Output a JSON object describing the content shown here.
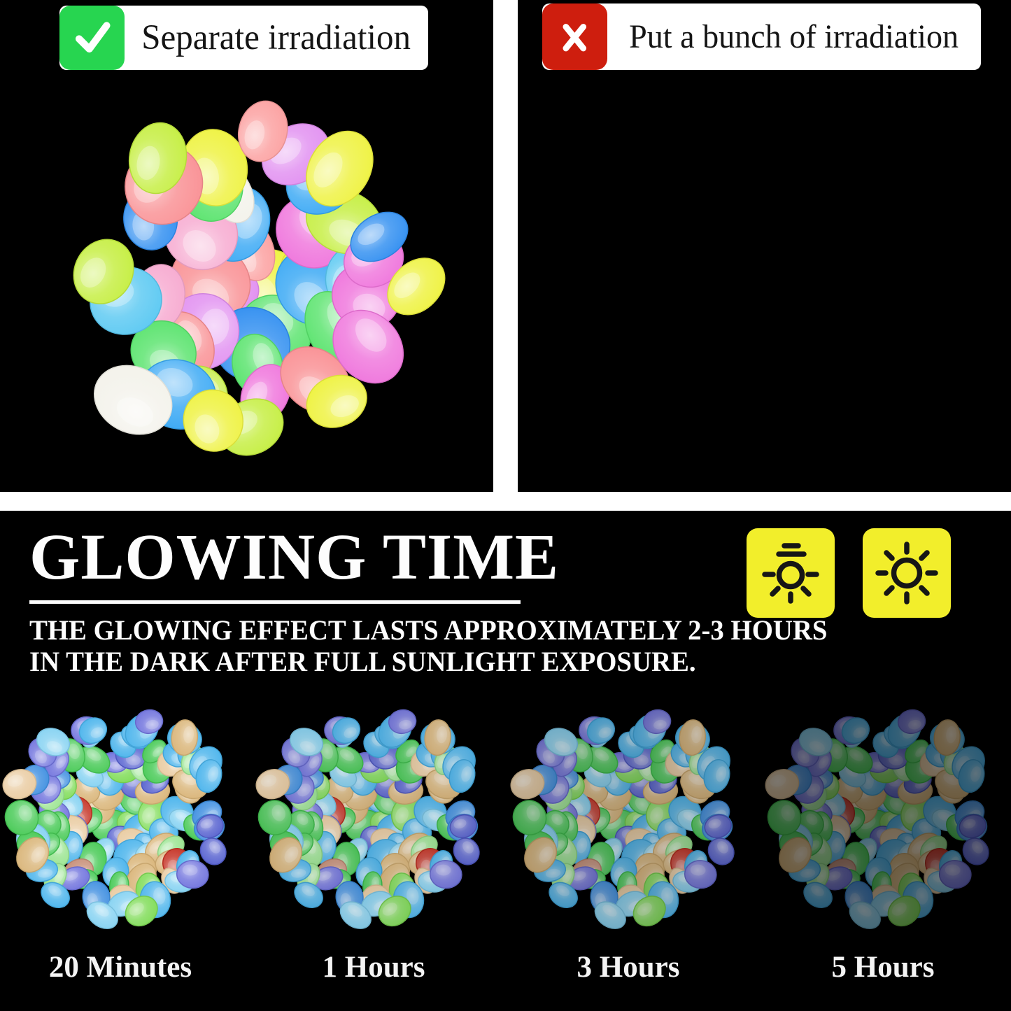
{
  "comparison": {
    "good": {
      "label": "Separate irradiation",
      "mark": "check",
      "mark_color": "#27d550"
    },
    "bad": {
      "label": "Put a bunch of irradiation",
      "mark": "cross",
      "mark_color": "#ce1e0e"
    }
  },
  "glowing": {
    "title": "GLOWING TIME",
    "subtitle_line1": "THE GLOWING EFFECT LASTS APPROXIMATELY 2-3 HOURS",
    "subtitle_line2": "IN THE DARK AFTER FULL SUNLIGHT EXPOSURE.",
    "icon_color": "#f2ee2b",
    "icons": [
      "brightness-dim-icon",
      "sun-icon"
    ],
    "stages": [
      {
        "label": "20 Minutes",
        "dim": 0
      },
      {
        "label": "1 Hours",
        "dim": 0.07
      },
      {
        "label": "3 Hours",
        "dim": 0.18
      },
      {
        "label": "5 Hours",
        "dim": 0.5
      }
    ]
  },
  "clusters": {
    "separate": {
      "seed": 7,
      "count": 44,
      "radius": 225,
      "size": 47,
      "jitter": 15,
      "gloss": 0.3,
      "palette": [
        "#f98f93",
        "#37a7f4",
        "#eef23d",
        "#58e36c",
        "#ef74dc",
        "#c4ee3e",
        "#e18df0",
        "#2f8df0",
        "#fb9f9f",
        "#f6a9cf",
        "#eef23d",
        "#37a7f4",
        "#58e36c",
        "#f98f93",
        "#ef74dc",
        "#c4ee3e",
        "#59c8f2",
        "#eef23d"
      ],
      "accents": [
        "#f3f2ea",
        "#f3f2ea"
      ]
    },
    "bunched": {
      "seed": 13,
      "count": 57,
      "radius": 195,
      "size": 50,
      "jitter": 16,
      "gloss": 0.3,
      "palette": [
        "#fb9d9d",
        "#37a7f4",
        "#eef23d",
        "#58e36c",
        "#ef74dc",
        "#c4ee3e",
        "#f6a9cf",
        "#2f8df0",
        "#e18df0",
        "#eef23d",
        "#f98f93",
        "#85d2f2",
        "#58e36c",
        "#c4ee3e",
        "#fb9d9d",
        "#eef23d"
      ],
      "accents": [
        "#ee2414",
        "#efeddc",
        "#efeddc",
        "#f3f2ea"
      ]
    },
    "glow": {
      "seed": 11,
      "count": 104,
      "radius": 146,
      "size": 21,
      "jitter": 7,
      "gloss": 0.18,
      "palette": [
        "#49b3ec",
        "#46c954",
        "#6f72dd",
        "#d9b478",
        "#85d2f2",
        "#7edc55",
        "#49b3ec",
        "#5560cf",
        "#e9cba0",
        "#46c954",
        "#3f8fe0",
        "#99e48f",
        "#49b3ec",
        "#d9b478",
        "#6f72dd",
        "#85d2f2",
        "#46c954",
        "#49b3ec"
      ],
      "accents": [
        "#c53022",
        "#c53022",
        "#c68d76"
      ]
    }
  },
  "colors": {
    "background": "#000000",
    "divider": "#ffffff",
    "text": "#ffffff"
  }
}
